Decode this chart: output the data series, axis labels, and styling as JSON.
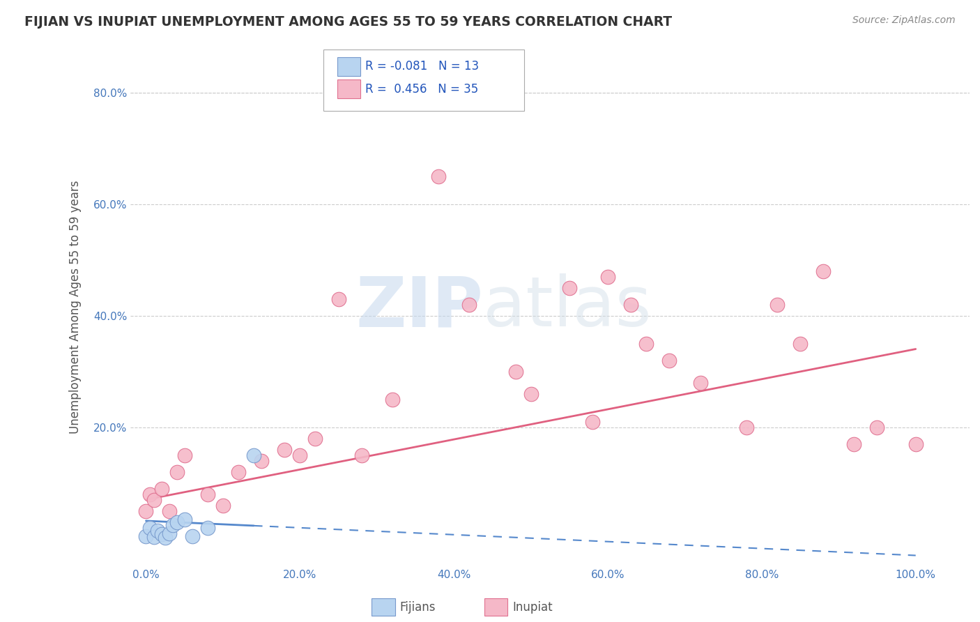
{
  "title": "FIJIAN VS INUPIAT UNEMPLOYMENT AMONG AGES 55 TO 59 YEARS CORRELATION CHART",
  "source": "Source: ZipAtlas.com",
  "ylabel": "Unemployment Among Ages 55 to 59 years",
  "xtick_labels": [
    "0.0%",
    "20.0%",
    "40.0%",
    "60.0%",
    "80.0%",
    "100.0%"
  ],
  "xtick_vals": [
    0,
    20,
    40,
    60,
    80,
    100
  ],
  "ytick_labels": [
    "20.0%",
    "40.0%",
    "60.0%",
    "80.0%"
  ],
  "ytick_vals": [
    20,
    40,
    60,
    80
  ],
  "xlim": [
    -2,
    107
  ],
  "ylim": [
    -5,
    88
  ],
  "fijian_color": "#b8d4f0",
  "inupiat_color": "#f5b8c8",
  "fijian_edge": "#7799cc",
  "inupiat_edge": "#e07090",
  "trend_fijian_color": "#5588cc",
  "trend_inupiat_color": "#e06080",
  "legend_R_fijian": "-0.081",
  "legend_N_fijian": "13",
  "legend_R_inupiat": "0.456",
  "legend_N_inupiat": "35",
  "watermark_zip": "ZIP",
  "watermark_atlas": "atlas",
  "background_color": "#ffffff",
  "grid_color": "#cccccc",
  "fijian_x": [
    0.0,
    0.5,
    1.0,
    1.5,
    2.0,
    2.5,
    3.0,
    3.5,
    4.0,
    5.0,
    6.0,
    8.0,
    14.0
  ],
  "fijian_y": [
    0.5,
    2.0,
    0.3,
    1.5,
    0.8,
    0.2,
    1.0,
    2.5,
    3.0,
    3.5,
    0.5,
    2.0,
    15.0
  ],
  "inupiat_x": [
    0.0,
    0.5,
    1.0,
    2.0,
    3.0,
    4.0,
    5.0,
    8.0,
    10.0,
    12.0,
    15.0,
    18.0,
    20.0,
    22.0,
    25.0,
    28.0,
    32.0,
    38.0,
    42.0,
    48.0,
    50.0,
    55.0,
    58.0,
    60.0,
    63.0,
    65.0,
    68.0,
    72.0,
    78.0,
    82.0,
    85.0,
    88.0,
    92.0,
    95.0,
    100.0
  ],
  "inupiat_y": [
    5.0,
    8.0,
    7.0,
    9.0,
    5.0,
    12.0,
    15.0,
    8.0,
    6.0,
    12.0,
    14.0,
    16.0,
    15.0,
    18.0,
    43.0,
    15.0,
    25.0,
    65.0,
    42.0,
    30.0,
    26.0,
    45.0,
    21.0,
    47.0,
    42.0,
    35.0,
    32.0,
    28.0,
    20.0,
    42.0,
    35.0,
    48.0,
    17.0,
    20.0,
    17.0
  ],
  "fijian_solid_end_x": 14.0,
  "inupiat_trend_x0": 0.0,
  "inupiat_trend_y0": 7.0,
  "inupiat_trend_x1": 100.0,
  "inupiat_trend_y1": 34.0,
  "fijian_trend_x0": 0.0,
  "fijian_trend_y0": 3.2,
  "fijian_trend_x1": 100.0,
  "fijian_trend_y1": -3.0
}
